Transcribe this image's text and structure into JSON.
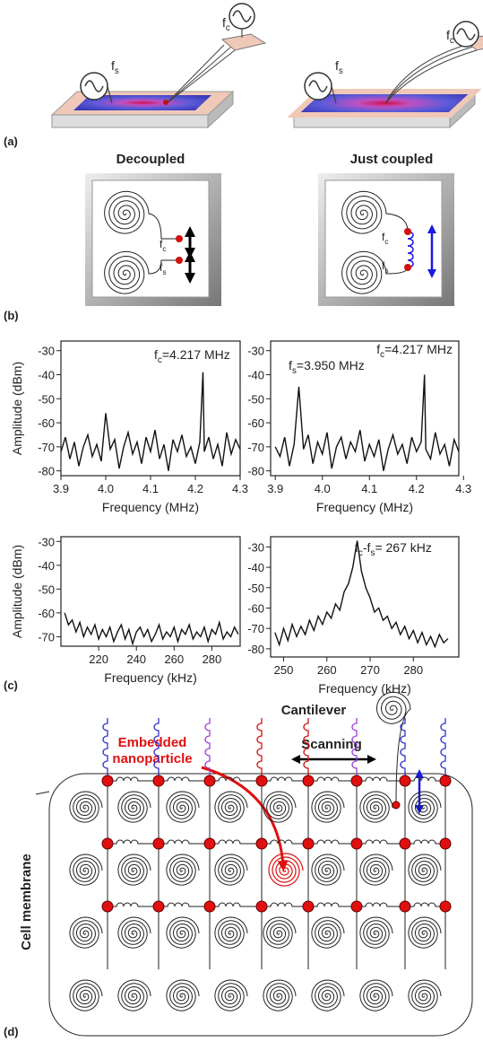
{
  "panel_labels": [
    "(a)",
    "(b)",
    "(c)",
    "(d)"
  ],
  "panel_a": {
    "source_labels": [
      {
        "base": "f",
        "sub": "s"
      },
      {
        "base": "f",
        "sub": "c"
      }
    ]
  },
  "panel_b": {
    "titles": [
      "Decoupled",
      "Just coupled"
    ],
    "labels": [
      {
        "base": "f",
        "sub": "c"
      },
      {
        "base": "f",
        "sub": "s"
      }
    ]
  },
  "chart_data": [
    {
      "type": "line",
      "y_label": "Amplitude (dBm)",
      "x_label": "Frequency (MHz)",
      "color": "#111",
      "x": [
        3.9,
        3.91,
        3.92,
        3.93,
        3.94,
        3.95,
        3.96,
        3.97,
        3.98,
        3.99,
        4.0,
        4.01,
        4.02,
        4.03,
        4.04,
        4.05,
        4.06,
        4.07,
        4.08,
        4.09,
        4.1,
        4.11,
        4.12,
        4.13,
        4.14,
        4.15,
        4.16,
        4.17,
        4.18,
        4.19,
        4.2,
        4.21,
        4.217,
        4.22,
        4.23,
        4.24,
        4.25,
        4.26,
        4.27,
        4.28,
        4.29,
        4.3
      ],
      "values": [
        -72,
        -66,
        -75,
        -68,
        -78,
        -70,
        -65,
        -74,
        -69,
        -76,
        -56,
        -71,
        -67,
        -79,
        -70,
        -64,
        -73,
        -68,
        -77,
        -66,
        -72,
        -63,
        -75,
        -69,
        -80,
        -67,
        -72,
        -65,
        -74,
        -70,
        -77,
        -68,
        -39,
        -72,
        -66,
        -75,
        -69,
        -78,
        -64,
        -73,
        -67,
        -71
      ],
      "xlim": [
        3.9,
        4.3
      ],
      "ylim": [
        -82,
        -26
      ],
      "xticks": [
        3.9,
        {
          "value": 4,
          "label": "4.0"
        },
        4.1,
        4.2,
        4.3
      ],
      "yticks": [
        -30,
        -40,
        -50,
        -60,
        -70,
        -80
      ],
      "annotations": [
        {
          "segments": [
            {
              "text": "f"
            },
            {
              "sub": "c"
            },
            {
              "text": "=4.217 MHz"
            }
          ]
        }
      ]
    },
    {
      "type": "line",
      "x_label": "Frequency (MHz)",
      "color": "#111",
      "x": [
        3.9,
        3.91,
        3.92,
        3.93,
        3.94,
        3.95,
        3.96,
        3.97,
        3.98,
        3.99,
        4.0,
        4.01,
        4.02,
        4.03,
        4.04,
        4.05,
        4.06,
        4.07,
        4.08,
        4.09,
        4.1,
        4.11,
        4.12,
        4.13,
        4.14,
        4.15,
        4.16,
        4.17,
        4.18,
        4.19,
        4.2,
        4.21,
        4.217,
        4.22,
        4.23,
        4.24,
        4.25,
        4.26,
        4.27,
        4.28,
        4.29
      ],
      "values": [
        -70,
        -74,
        -66,
        -78,
        -69,
        -45,
        -71,
        -65,
        -77,
        -68,
        -73,
        -64,
        -79,
        -70,
        -66,
        -75,
        -68,
        -72,
        -63,
        -76,
        -69,
        -74,
        -67,
        -80,
        -71,
        -65,
        -73,
        -69,
        -77,
        -66,
        -72,
        -68,
        -40,
        -71,
        -75,
        -64,
        -73,
        -69,
        -78,
        -67,
        -72
      ],
      "xlim": [
        3.89,
        4.29
      ],
      "ylim": [
        -82,
        -26
      ],
      "xticks": [
        3.9,
        {
          "value": 4,
          "label": "4.0"
        },
        4.1,
        4.2,
        4.3
      ],
      "yticks": [
        -30,
        -40,
        -50,
        -60,
        -70,
        -80
      ],
      "annotations": [
        {
          "segments": [
            {
              "text": "f"
            },
            {
              "sub": "c"
            },
            {
              "text": "=4.217 MHz"
            }
          ]
        },
        {
          "segments": [
            {
              "text": "f"
            },
            {
              "sub": "s"
            },
            {
              "text": "=3.950 MHz"
            }
          ]
        }
      ]
    },
    {
      "type": "line",
      "y_label": "Amplitude (dBm)",
      "x_label": "Frequency (kHz)",
      "color": "#111",
      "x": [
        202,
        204,
        206,
        208,
        210,
        212,
        214,
        216,
        218,
        220,
        222,
        224,
        226,
        228,
        230,
        232,
        234,
        236,
        238,
        240,
        242,
        244,
        246,
        248,
        250,
        252,
        254,
        256,
        258,
        260,
        262,
        264,
        266,
        268,
        270,
        272,
        274,
        276,
        278,
        280,
        282,
        284,
        286,
        288,
        290,
        292,
        294
      ],
      "values": [
        -60,
        -65,
        -63,
        -68,
        -64,
        -70,
        -66,
        -69,
        -65,
        -71,
        -67,
        -70,
        -66,
        -72,
        -68,
        -65,
        -71,
        -67,
        -73,
        -68,
        -66,
        -70,
        -67,
        -72,
        -69,
        -65,
        -71,
        -68,
        -70,
        -66,
        -72,
        -67,
        -69,
        -65,
        -71,
        -68,
        -70,
        -66,
        -72,
        -67,
        -69,
        -64,
        -71,
        -68,
        -70,
        -66,
        -69
      ],
      "xlim": [
        200,
        295
      ],
      "ylim": [
        -74,
        -28
      ],
      "xticks": [
        220,
        240,
        260,
        280
      ],
      "yticks": [
        -30,
        -40,
        -50,
        -60,
        -70
      ],
      "annotations": []
    },
    {
      "type": "line",
      "x_label": "Frequency (kHz)",
      "color": "#111",
      "x": [
        248,
        249,
        250,
        251,
        252,
        253,
        254,
        255,
        256,
        257,
        258,
        259,
        260,
        261,
        262,
        263,
        264,
        265,
        266,
        267,
        268,
        269,
        270,
        271,
        272,
        273,
        274,
        275,
        276,
        277,
        278,
        279,
        280,
        281,
        282,
        283,
        284,
        285,
        286,
        287,
        288
      ],
      "values": [
        -72,
        -78,
        -70,
        -76,
        -68,
        -74,
        -69,
        -73,
        -66,
        -71,
        -64,
        -68,
        -62,
        -65,
        -58,
        -61,
        -52,
        -48,
        -40,
        -27,
        -42,
        -50,
        -55,
        -62,
        -60,
        -66,
        -64,
        -70,
        -67,
        -73,
        -69,
        -75,
        -71,
        -77,
        -72,
        -78,
        -74,
        -79,
        -73,
        -77,
        -75
      ],
      "xlim": [
        247,
        290.5
      ],
      "ylim": [
        -84,
        -25
      ],
      "xticks": [
        250,
        260,
        270,
        280
      ],
      "yticks": [
        -30,
        -40,
        -50,
        -60,
        -70,
        -80
      ],
      "annotations": [
        {
          "segments": [
            {
              "text": "f"
            },
            {
              "sub": "c"
            },
            {
              "text": "-f"
            },
            {
              "sub": "s"
            },
            {
              "text": "= 267 kHz"
            }
          ]
        }
      ]
    }
  ],
  "panel_d": {
    "cantilever": "Cantilever",
    "nanoparticle": [
      "Embedded",
      "nanoparticle"
    ],
    "scanning": "Scanning",
    "membrane": "Cell membrane"
  }
}
